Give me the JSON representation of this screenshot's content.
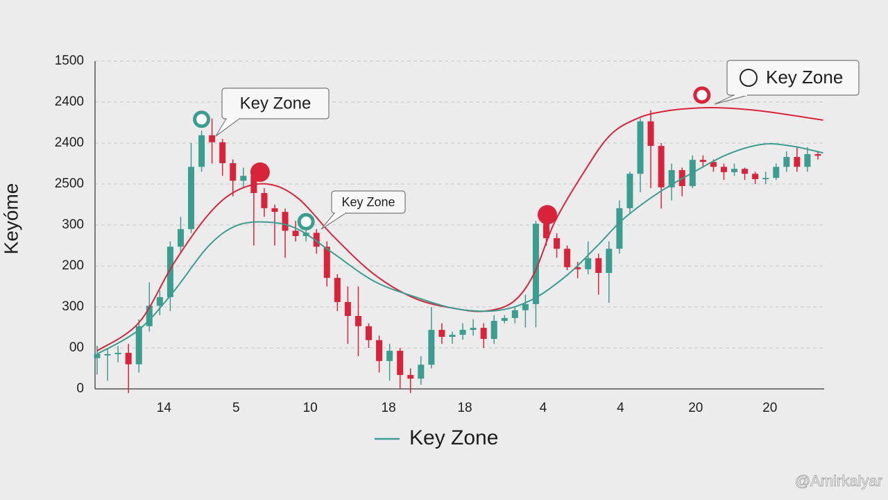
{
  "chart_data": {
    "type": "candlestick",
    "y_label": "Keyóme",
    "ylim": [
      0,
      8
    ],
    "yticks": [
      0,
      {
        "value": 1,
        "label": "00"
      },
      {
        "value": 2,
        "label": "300"
      },
      {
        "value": 3,
        "label": "200"
      },
      {
        "value": 4,
        "label": "300"
      },
      {
        "value": 5,
        "label": "2500"
      },
      {
        "value": 6,
        "label": "2400"
      },
      {
        "value": 7,
        "label": "2400"
      },
      {
        "value": 8,
        "label": "1500"
      }
    ],
    "xlim": [
      -0.2,
      69.6
    ],
    "xticks": [
      {
        "value": 6.4,
        "label": "14"
      },
      {
        "value": 13.3,
        "label": "5"
      },
      {
        "value": 20.4,
        "label": "10"
      },
      {
        "value": 27.9,
        "label": "18"
      },
      {
        "value": 35.2,
        "label": "18"
      },
      {
        "value": 42.7,
        "label": "4"
      },
      {
        "value": 50.1,
        "label": "4"
      },
      {
        "value": 57.3,
        "label": "20"
      },
      {
        "value": 64.4,
        "label": "20"
      }
    ],
    "grid": true,
    "up_color": "#3a9d90",
    "down_color": "#d8233b",
    "open": [
      0.75,
      0.85,
      0.85,
      0.88,
      0.6,
      1.53,
      2.03,
      2.24,
      3.47,
      3.9,
      5.42,
      6.19,
      6.02,
      5.51,
      5.08,
      5.2,
      4.78,
      4.41,
      4.32,
      3.86,
      3.73,
      3.81,
      3.47,
      2.71,
      2.12,
      1.78,
      1.53,
      1.19,
      0.68,
      0.93,
      0.34,
      0.25,
      0.59,
      1.44,
      1.27,
      1.32,
      1.44,
      1.49,
      1.22,
      1.66,
      1.73,
      1.92,
      2.07,
      4.03,
      3.68,
      3.42,
      2.97,
      2.92,
      3.19,
      2.83,
      3.42,
      4.41,
      5.25,
      6.53,
      5.93,
      4.92,
      5.34,
      4.95,
      5.59,
      5.54,
      5.42,
      5.29,
      5.37,
      5.25,
      5.12,
      5.15,
      5.42,
      5.66,
      5.42,
      5.73
    ],
    "high": [
      1.05,
      1.0,
      1.05,
      1.1,
      1.7,
      2.6,
      2.4,
      3.6,
      4.2,
      6.0,
      6.3,
      6.6,
      6.1,
      5.6,
      5.4,
      5.3,
      4.9,
      4.5,
      4.4,
      4.1,
      4.0,
      3.9,
      3.6,
      2.8,
      2.5,
      2.5,
      1.6,
      1.3,
      1.1,
      1.0,
      0.5,
      0.8,
      2.0,
      1.6,
      1.4,
      1.6,
      1.7,
      1.6,
      1.8,
      1.8,
      2.0,
      2.3,
      4.1,
      4.2,
      3.8,
      3.5,
      3.1,
      3.6,
      3.3,
      3.6,
      4.6,
      5.3,
      6.6,
      6.8,
      6.0,
      5.5,
      5.4,
      5.7,
      5.7,
      5.6,
      5.5,
      5.5,
      5.4,
      5.3,
      5.3,
      5.5,
      5.8,
      5.9,
      5.9,
      5.8
    ],
    "low": [
      0.35,
      0.2,
      0.65,
      -0.1,
      0.4,
      1.4,
      1.8,
      1.9,
      3.3,
      3.8,
      5.3,
      5.5,
      5.2,
      4.7,
      4.9,
      3.5,
      4.2,
      3.5,
      3.2,
      3.6,
      3.6,
      3.3,
      2.5,
      1.9,
      1.1,
      0.8,
      1.0,
      0.4,
      0.2,
      0,
      -0.1,
      0.1,
      0.5,
      1.1,
      1.1,
      1.2,
      1.3,
      1.0,
      1.1,
      1.6,
      1.6,
      1.5,
      1.5,
      3.5,
      3.2,
      2.9,
      2.7,
      2.8,
      2.3,
      2.1,
      3.3,
      4.3,
      4.8,
      4.9,
      4.4,
      4.6,
      4.7,
      4.9,
      5.4,
      5.3,
      5.1,
      5.2,
      5.1,
      5.0,
      5.0,
      5.1,
      5.3,
      5.3,
      5.3,
      5.6
    ],
    "close": [
      0.85,
      0.85,
      0.88,
      0.6,
      1.53,
      2.03,
      2.24,
      3.47,
      3.9,
      5.42,
      6.19,
      6.02,
      5.51,
      5.08,
      5.2,
      4.78,
      4.41,
      4.32,
      3.86,
      3.73,
      3.81,
      3.47,
      2.71,
      2.12,
      1.78,
      1.53,
      1.19,
      0.68,
      0.93,
      0.34,
      0.25,
      0.59,
      1.44,
      1.27,
      1.32,
      1.44,
      1.49,
      1.22,
      1.66,
      1.73,
      1.92,
      2.07,
      4.03,
      3.68,
      3.42,
      2.97,
      2.92,
      3.19,
      2.83,
      3.42,
      4.41,
      5.25,
      6.53,
      5.93,
      4.92,
      5.34,
      4.95,
      5.59,
      5.54,
      5.42,
      5.29,
      5.37,
      5.25,
      5.12,
      5.15,
      5.42,
      5.66,
      5.42,
      5.73,
      5.69
    ],
    "series": [
      {
        "color": "#d8233b",
        "x": [
          0,
          3.98,
          7.3,
          10.6,
          13.3,
          16.3,
          19.2,
          22.6,
          26.5,
          30.5,
          34.5,
          37.2,
          39.8,
          41.8,
          43.8,
          46.5,
          49.1,
          51.8,
          54.4,
          57.1,
          59.7,
          63.7,
          69.5
        ],
        "values": [
          0.93,
          1.61,
          3.05,
          4.24,
          4.83,
          5.0,
          4.66,
          3.73,
          2.8,
          2.2,
          1.95,
          1.9,
          2.12,
          2.8,
          4.07,
          5.25,
          6.19,
          6.61,
          6.78,
          6.85,
          6.86,
          6.78,
          6.56
        ]
      },
      {
        "name": "Key Zone",
        "color": "#3a9d90",
        "x": [
          0,
          3.98,
          7.3,
          10.6,
          13.3,
          16.3,
          19.2,
          22.6,
          26.5,
          30.5,
          34.5,
          38.5,
          41.8,
          45.1,
          47.8,
          50.4,
          53.7,
          57.1,
          60.4,
          63.7,
          66.4,
          69.5
        ],
        "values": [
          0.85,
          1.44,
          2.37,
          3.47,
          3.98,
          4.07,
          3.9,
          3.31,
          2.63,
          2.24,
          1.95,
          1.92,
          2.2,
          2.8,
          3.47,
          4.15,
          4.78,
          5.29,
          5.73,
          5.97,
          5.93,
          5.76
        ]
      }
    ],
    "markers": [
      {
        "x": 10.0,
        "y": 6.58,
        "color": "#3a9d90",
        "style": "ring"
      },
      {
        "x": 15.6,
        "y": 5.29,
        "color": "#d8233b",
        "style": "dot"
      },
      {
        "x": 20.0,
        "y": 4.08,
        "color": "#3a9d90",
        "style": "ring"
      },
      {
        "x": 43.1,
        "y": 4.25,
        "color": "#d8233b",
        "style": "dot"
      },
      {
        "x": 57.9,
        "y": 7.17,
        "color": "#d8233b",
        "style": "ring"
      }
    ],
    "annotations": [
      "Key Zone",
      "Key Zone",
      "Key Zone"
    ],
    "watermark": "@Amirkalyar"
  }
}
